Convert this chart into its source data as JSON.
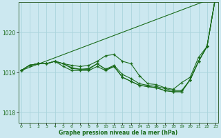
{
  "bg_color": "#cce8f0",
  "grid_color": "#aad4dc",
  "line_color": "#1a6b1a",
  "xlabel": "Graphe pression niveau de la mer (hPa)",
  "yticks": [
    1018,
    1019,
    1020
  ],
  "xticks": [
    0,
    1,
    2,
    3,
    4,
    5,
    6,
    7,
    8,
    9,
    10,
    11,
    12,
    13,
    14,
    15,
    16,
    17,
    18,
    19,
    20,
    21,
    22,
    23
  ],
  "xlim": [
    -0.3,
    23.3
  ],
  "ylim": [
    1017.75,
    1020.75
  ],
  "series": [
    [
      1019.05,
      1019.18,
      1019.22,
      1019.22,
      1019.28,
      1019.22,
      1019.18,
      1019.15,
      1019.18,
      1019.28,
      1019.42,
      1019.45,
      1019.28,
      1019.22,
      1018.92,
      1018.72,
      1018.7,
      1018.62,
      1018.58,
      1018.75,
      1018.88,
      1019.38,
      1019.65,
      1020.88
    ],
    [
      1019.05,
      1019.18,
      1019.22,
      1019.22,
      1019.28,
      1019.22,
      1019.1,
      1019.08,
      1019.1,
      1019.22,
      1019.08,
      1019.18,
      1018.95,
      1018.85,
      1018.72,
      1018.68,
      1018.65,
      1018.6,
      1018.55,
      1018.55,
      1018.82,
      1019.28,
      1019.65,
      1020.88
    ],
    [
      1019.05,
      1019.18,
      1019.22,
      1019.22,
      1019.28,
      1019.15,
      1019.05,
      1019.05,
      1019.05,
      1019.15,
      1019.05,
      1019.15,
      1018.88,
      1018.78,
      1018.68,
      1018.65,
      1018.62,
      1018.55,
      1018.52,
      1018.52,
      1018.82,
      1019.28,
      1019.65,
      1020.88
    ],
    [
      1019.05,
      1019.18,
      1019.22,
      1019.22,
      1019.28,
      1019.22,
      1019.12,
      1019.08,
      1019.08,
      1019.22,
      1019.08,
      1019.15,
      1018.88,
      1018.78,
      1018.68,
      1018.65,
      1018.62,
      1018.55,
      1018.52,
      1018.52,
      1018.82,
      1019.28,
      1019.65,
      1020.88
    ]
  ],
  "straight_line": [
    1019.05,
    1020.88
  ]
}
